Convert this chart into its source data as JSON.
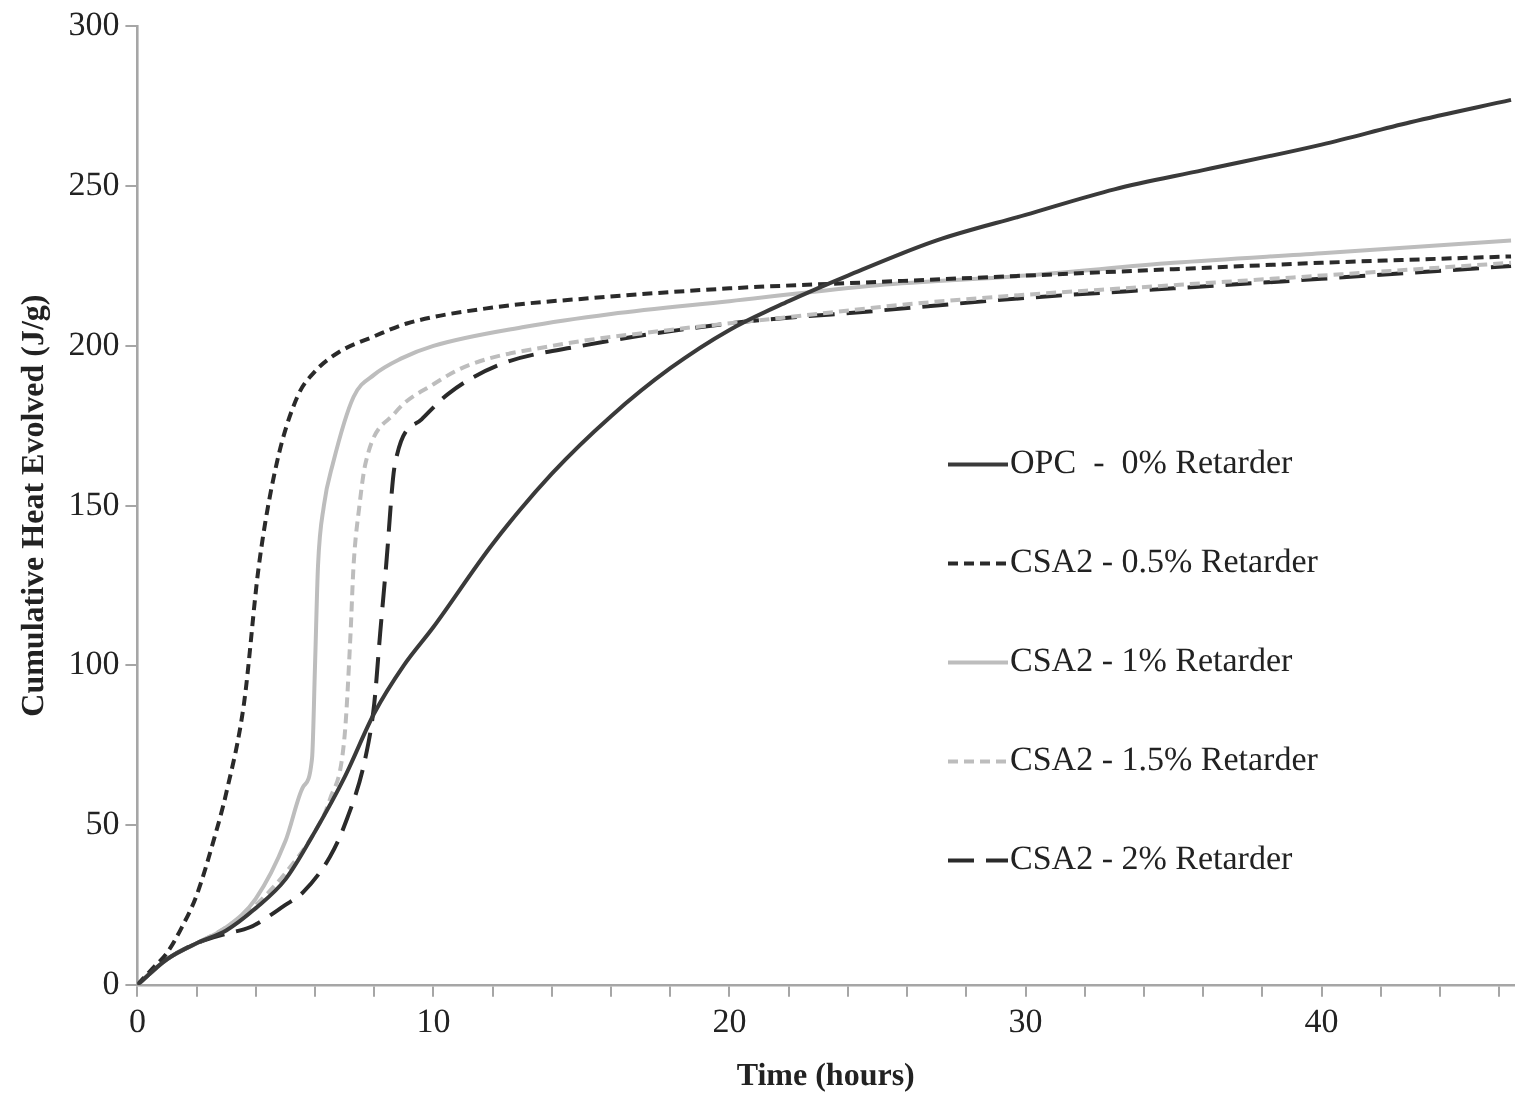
{
  "chart_data": {
    "type": "line",
    "xlabel": "Time (hours)",
    "ylabel": "Cumulative Heat Evolved (J/g)",
    "xlim": [
      0,
      46.5
    ],
    "ylim": [
      0,
      300
    ],
    "xticks": [
      0,
      {
        "value": 2,
        "label": null
      },
      {
        "value": 4,
        "label": null
      },
      {
        "value": 6,
        "label": null
      },
      {
        "value": 8,
        "label": null
      },
      10,
      {
        "value": 12,
        "label": null
      },
      {
        "value": 14,
        "label": null
      },
      {
        "value": 16,
        "label": null
      },
      {
        "value": 18,
        "label": null
      },
      20,
      {
        "value": 22,
        "label": null
      },
      {
        "value": 24,
        "label": null
      },
      {
        "value": 26,
        "label": null
      },
      {
        "value": 28,
        "label": null
      },
      30,
      {
        "value": 32,
        "label": null
      },
      {
        "value": 34,
        "label": null
      },
      {
        "value": 36,
        "label": null
      },
      {
        "value": 38,
        "label": null
      },
      40,
      {
        "value": 42,
        "label": null
      },
      {
        "value": 44,
        "label": null
      },
      {
        "value": 46,
        "label": null
      }
    ],
    "yticks": [
      0,
      50,
      100,
      150,
      200,
      250,
      300
    ],
    "grid": false,
    "legend": "right",
    "marker": "none",
    "series": [
      {
        "name": "OPC  -  0% Retarder",
        "color": "#3a3a3a",
        "line_style": "solid",
        "x": [
          0,
          1,
          2,
          3,
          4,
          5,
          6,
          7,
          8,
          9,
          10,
          12,
          14,
          16,
          18,
          20,
          22,
          24,
          27,
          30,
          33,
          36,
          40,
          43,
          46.4
        ],
        "values": [
          0,
          8,
          13,
          17,
          24,
          33,
          48,
          65,
          85,
          100,
          112,
          138,
          160,
          178,
          193,
          205,
          214,
          222,
          233,
          241,
          249,
          255,
          263,
          270,
          277
        ]
      },
      {
        "name": "CSA2 - 0.5% Retarder",
        "color": "#2a2a2a",
        "line_style": "dotted",
        "x": [
          0,
          0.5,
          1,
          1.5,
          2,
          2.6,
          3,
          3.6,
          4.1,
          4.7,
          5.4,
          6,
          6.8,
          8,
          9.1,
          12,
          15.4,
          20,
          25,
          30,
          35,
          40,
          46.4
        ],
        "values": [
          0,
          5,
          10,
          18,
          28,
          46,
          60,
          88,
          131,
          163,
          184,
          192,
          198,
          203,
          207,
          212,
          215,
          218,
          220,
          222,
          224,
          226,
          228
        ]
      },
      {
        "name": "CSA2 - 1% Retarder",
        "color": "#bdbdbd",
        "line_style": "solid",
        "x": [
          0,
          1,
          2,
          3,
          4,
          5,
          5.6,
          5.9,
          6,
          6.1,
          6.3,
          6.6,
          7.3,
          8,
          8.9,
          10,
          13.1,
          16,
          20,
          25,
          30,
          35,
          40,
          46.4
        ],
        "values": [
          0,
          8,
          13,
          18,
          27,
          45,
          62,
          71,
          100,
          131,
          150,
          163,
          184,
          191,
          196,
          200,
          206,
          210,
          214,
          219,
          222,
          226,
          229,
          233
        ]
      },
      {
        "name": "CSA2 - 1.5% Retarder",
        "color": "#bdbdbd",
        "line_style": "dotted",
        "x": [
          0,
          1,
          2,
          3,
          4,
          5,
          6,
          6.5,
          7,
          7.2,
          7.3,
          7.5,
          7.7,
          8.7,
          10,
          11.2,
          14,
          18,
          22,
          26,
          30,
          35,
          40,
          46.4
        ],
        "values": [
          0,
          8,
          13,
          18,
          25,
          35,
          48,
          58,
          78,
          110,
          131,
          150,
          163,
          179,
          188,
          194,
          200,
          205,
          209,
          213,
          216,
          219,
          222,
          226
        ]
      },
      {
        "name": "CSA2 - 2% Retarder",
        "color": "#2a2a2a",
        "line_style": "dashed",
        "x": [
          0,
          1,
          2,
          3,
          3.8,
          5,
          5.6,
          6.5,
          7,
          7.7,
          8,
          8.2,
          8.4,
          8.7,
          9.6,
          10.5,
          12.2,
          15,
          20,
          25,
          30,
          35,
          40,
          46.4
        ],
        "values": [
          0,
          8,
          13,
          16,
          18,
          25,
          29,
          40,
          50,
          71,
          88,
          110,
          131,
          163,
          177,
          185,
          194,
          200,
          207,
          211,
          215,
          218,
          221,
          225
        ]
      }
    ]
  }
}
